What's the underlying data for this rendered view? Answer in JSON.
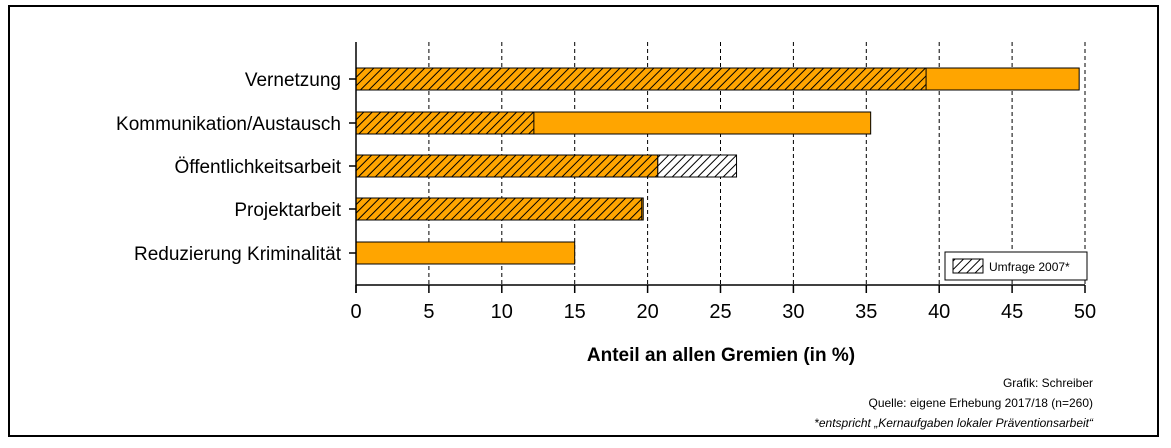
{
  "chart_data": {
    "type": "bar",
    "orientation": "horizontal",
    "categories": [
      "Vernetzung",
      "Kommunikation/Austausch",
      "Öffentlichkeitsarbeit",
      "Projektarbeit",
      "Reduzierung Kriminalität"
    ],
    "series": [
      {
        "name": "",
        "values": [
          49.6,
          35.3,
          20.7,
          19.7,
          15.0
        ],
        "color": "#FFA500"
      },
      {
        "name": "Umfrage 2007*",
        "values": [
          39.1,
          12.2,
          26.1,
          19.6,
          null
        ],
        "pattern": "hatched"
      }
    ],
    "xlabel": "Anteil an allen Gremien (in %)",
    "xlim": [
      0,
      50
    ],
    "xticks": [
      0,
      5,
      10,
      15,
      20,
      25,
      30,
      35,
      40,
      45,
      50
    ],
    "grid": "vertical dashed",
    "legend": {
      "position": "bottom-right"
    },
    "credit": "Grafik: Schreiber",
    "source": "Quelle: eigene Erhebung 2017/18 (n=260)",
    "footnote": "*entspricht „Kernaufgaben lokaler Präventionsarbeit“"
  }
}
